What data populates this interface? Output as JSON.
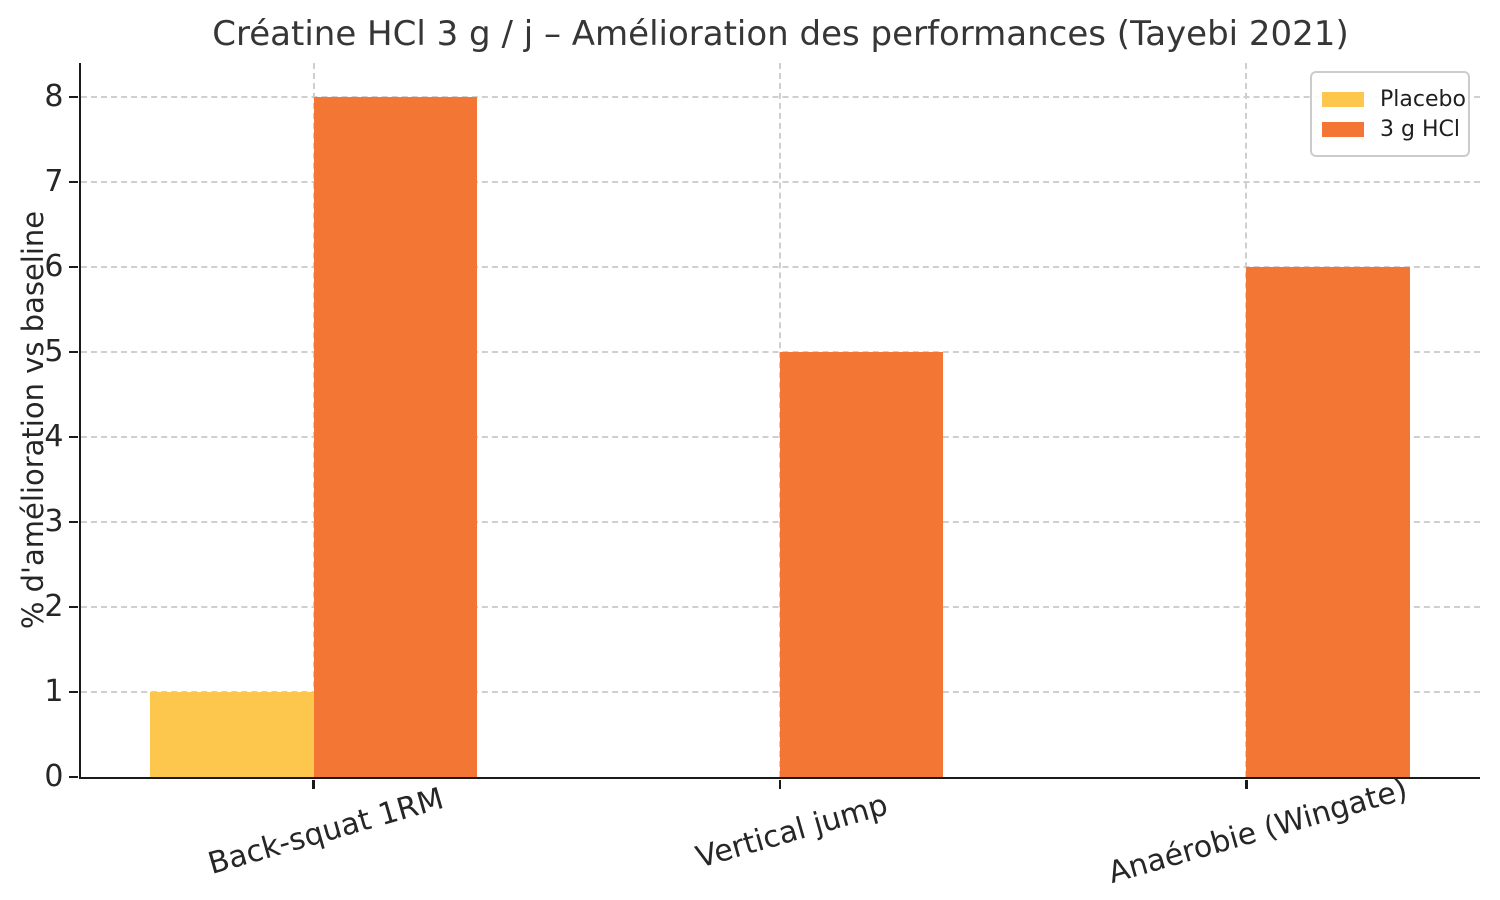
{
  "chart_data": {
    "type": "bar",
    "title": "Créatine HCl 3 g / j – Amélioration des performances (Tayebi 2021)",
    "xlabel": "",
    "ylabel": "% d'amélioration vs baseline",
    "categories": [
      "Back-squat 1RM",
      "Vertical jump",
      "Anaérobie (Wingate)"
    ],
    "series": [
      {
        "name": "Placebo",
        "color": "#FDC64D",
        "values": [
          1,
          0,
          0
        ]
      },
      {
        "name": "3 g HCl",
        "color": "#F37635",
        "values": [
          8,
          5,
          6
        ]
      }
    ],
    "yticks": [
      0,
      1,
      2,
      3,
      4,
      5,
      6,
      7,
      8
    ],
    "ylim": [
      0,
      8.4
    ],
    "grid": true,
    "grid_style": "dashed",
    "legend_position": "upper right",
    "bar_width_fraction": 0.35,
    "xtick_rotation_deg": 16
  }
}
